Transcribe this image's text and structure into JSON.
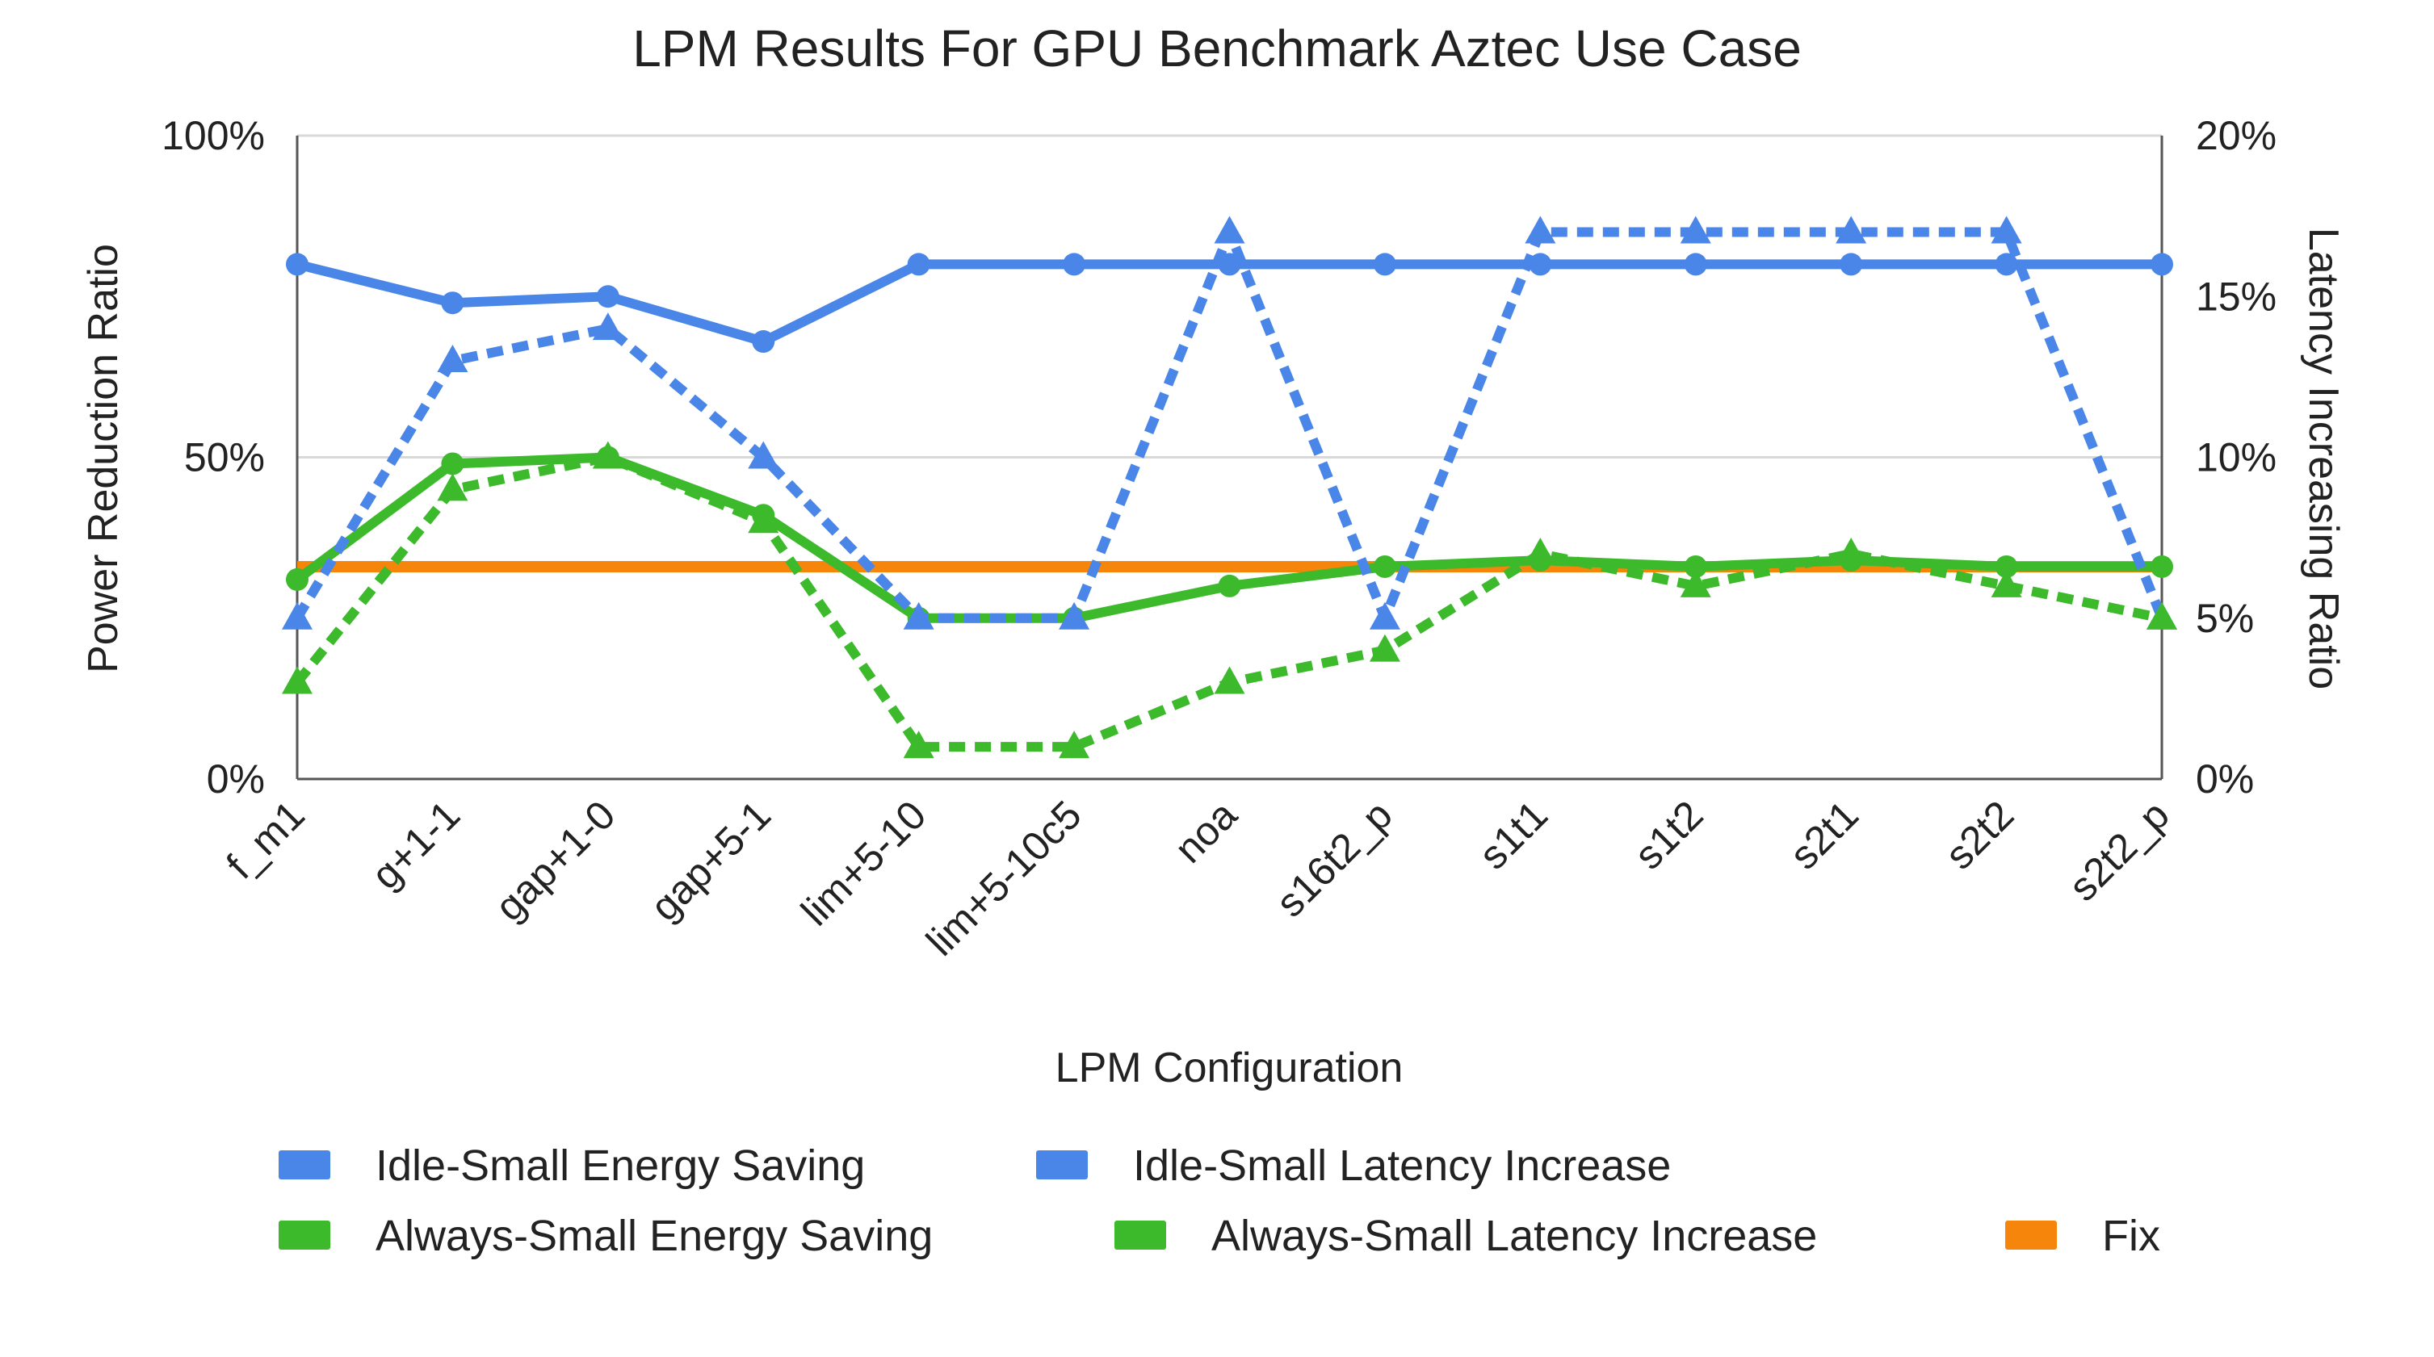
{
  "chart_data": {
    "type": "line",
    "title": "LPM Results For GPU Benchmark Aztec Use Case",
    "xlabel": "LPM Configuration",
    "ylabel": "Power Reduction Ratio",
    "y2label": "Latency Increasing Ratio",
    "ylim": [
      0,
      100
    ],
    "y2lim": [
      0,
      20
    ],
    "yticks": [
      "0%",
      "50%",
      "100%"
    ],
    "y2ticks": [
      "0%",
      "5%",
      "10%",
      "15%",
      "20%"
    ],
    "grid": true,
    "legend_position": "bottom",
    "categories": [
      "f_m1",
      "g+1-1",
      "gap+1-0",
      "gap+5-1",
      "lim+5-10",
      "lim+5-10c5",
      "noa",
      "s16t2_p",
      "s1t1",
      "s1t2",
      "s2t1",
      "s2t2",
      "s2t2_p"
    ],
    "series": [
      {
        "name": "Idle-Small Energy Saving",
        "axis": "left",
        "style": "solid",
        "marker": "circle",
        "color": "#4a86e8",
        "values": [
          80,
          74,
          75,
          68,
          80,
          80,
          80,
          80,
          80,
          80,
          80,
          80,
          80
        ]
      },
      {
        "name": "Idle-Small Latency Increase",
        "axis": "right",
        "style": "dashed",
        "marker": "triangle",
        "color": "#4a86e8",
        "values": [
          5,
          13,
          14,
          10,
          5,
          5,
          17,
          5,
          17,
          17,
          17,
          17,
          5
        ]
      },
      {
        "name": "Always-Small Energy Saving",
        "axis": "left",
        "style": "solid",
        "marker": "circle",
        "color": "#3cba2c",
        "values": [
          31,
          49,
          50,
          41,
          25,
          25,
          30,
          33,
          34,
          33,
          34,
          33,
          33
        ]
      },
      {
        "name": "Always-Small Latency Increase",
        "axis": "right",
        "style": "dashed",
        "marker": "triangle",
        "color": "#3cba2c",
        "values": [
          3,
          9,
          10,
          8,
          1,
          1,
          3,
          4,
          7,
          6,
          7,
          6,
          5
        ]
      },
      {
        "name": "Fix",
        "axis": "left",
        "style": "solid",
        "marker": "none",
        "color": "#f5850b",
        "values": [
          33,
          33,
          33,
          33,
          33,
          33,
          33,
          33,
          33,
          33,
          33,
          33,
          33
        ]
      }
    ]
  }
}
